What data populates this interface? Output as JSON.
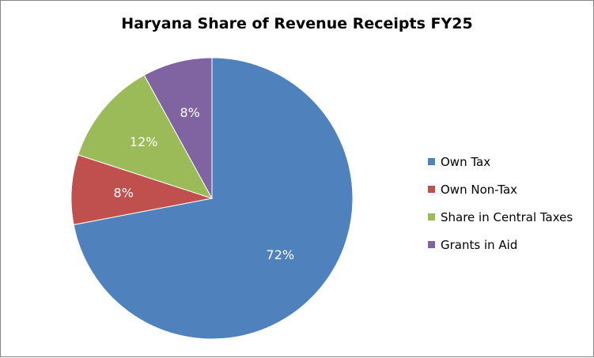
{
  "chart_data": {
    "type": "pie",
    "title": "Haryana Share of Revenue Receipts FY25",
    "categories": [
      "Own Tax",
      "Own Non-Tax",
      "Share in Central Taxes",
      "Grants in Aid"
    ],
    "values": [
      72,
      8,
      12,
      8
    ],
    "labels": [
      "72%",
      "8%",
      "12%",
      "8%"
    ],
    "colors": [
      "#4F81BD",
      "#C0504D",
      "#9BBB59",
      "#8064A2"
    ],
    "legend": "right",
    "start_angle": "12 o'clock",
    "direction": "clockwise"
  }
}
